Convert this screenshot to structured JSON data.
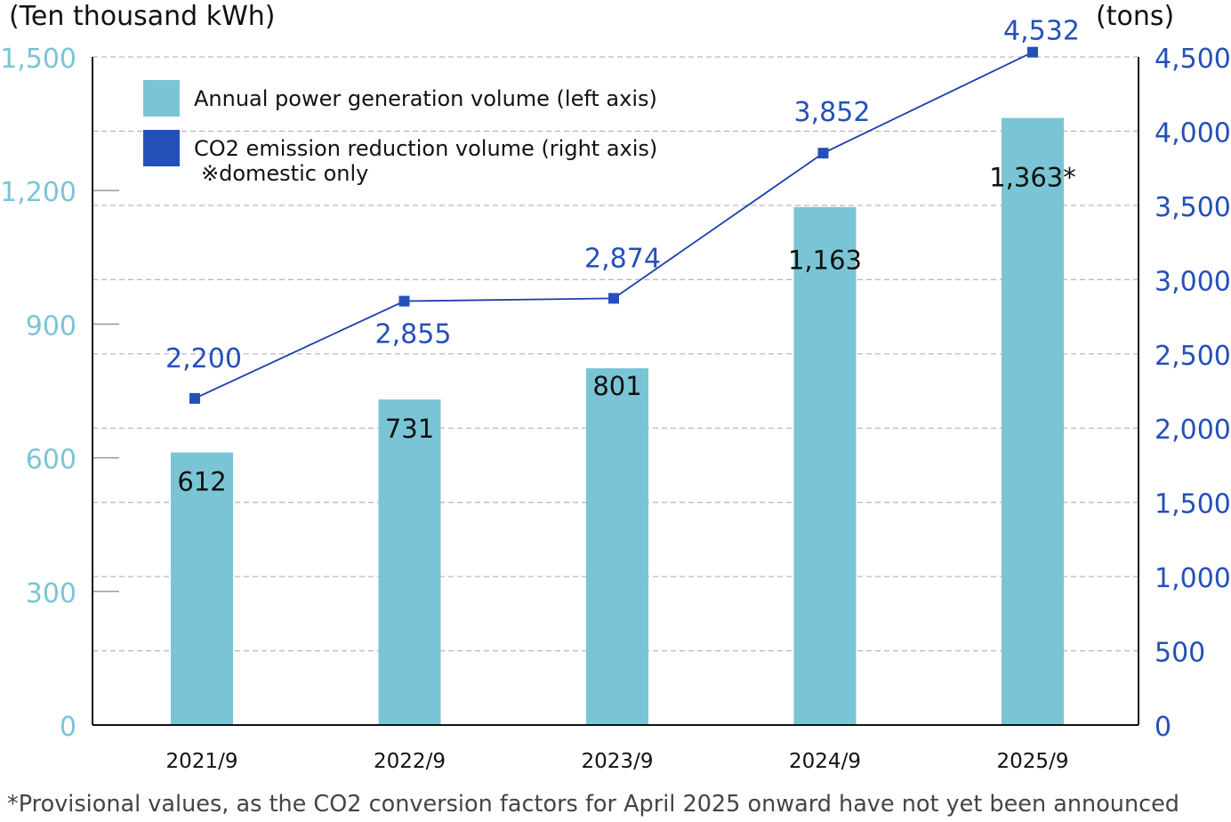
{
  "chart_data": {
    "type": "bar+line",
    "categories": [
      "2021/9",
      "2022/9",
      "2023/9",
      "2024/9",
      "2025/9"
    ],
    "series": [
      {
        "name": "Annual power generation volume (left axis)",
        "type": "bar",
        "axis": "left",
        "values": [
          612,
          731,
          801,
          1163,
          1363
        ],
        "labels": [
          "612",
          "731",
          "801",
          "1,163",
          "1,363*"
        ],
        "color": "#7AC5D5"
      },
      {
        "name": "CO2 emission reduction volume (right axis)",
        "subname": "※domestic only",
        "type": "line",
        "axis": "right",
        "values": [
          2200,
          2855,
          2874,
          3852,
          4532
        ],
        "labels": [
          "2,200",
          "2,855",
          "2,874",
          "3,852",
          "4,532"
        ],
        "color": "#2450B8"
      }
    ],
    "left_axis": {
      "unit": "(Ten thousand kWh)",
      "range": [
        0,
        1500
      ],
      "ticks": [
        "0",
        "300",
        "600",
        "900",
        "1,200",
        "1,500"
      ],
      "color": "#7AC5D5"
    },
    "right_axis": {
      "unit": "(tons)",
      "range": [
        0,
        4500
      ],
      "ticks": [
        "0",
        "500",
        "1,000",
        "1,500",
        "2,000",
        "2,500",
        "3,000",
        "3,500",
        "4,000",
        "4,500"
      ],
      "color": "#2450B8"
    },
    "grid": true,
    "legend_position": "top-left",
    "footnote": "*Provisional values, as the CO2 conversion factors for April 2025 onward have not yet been announced"
  }
}
